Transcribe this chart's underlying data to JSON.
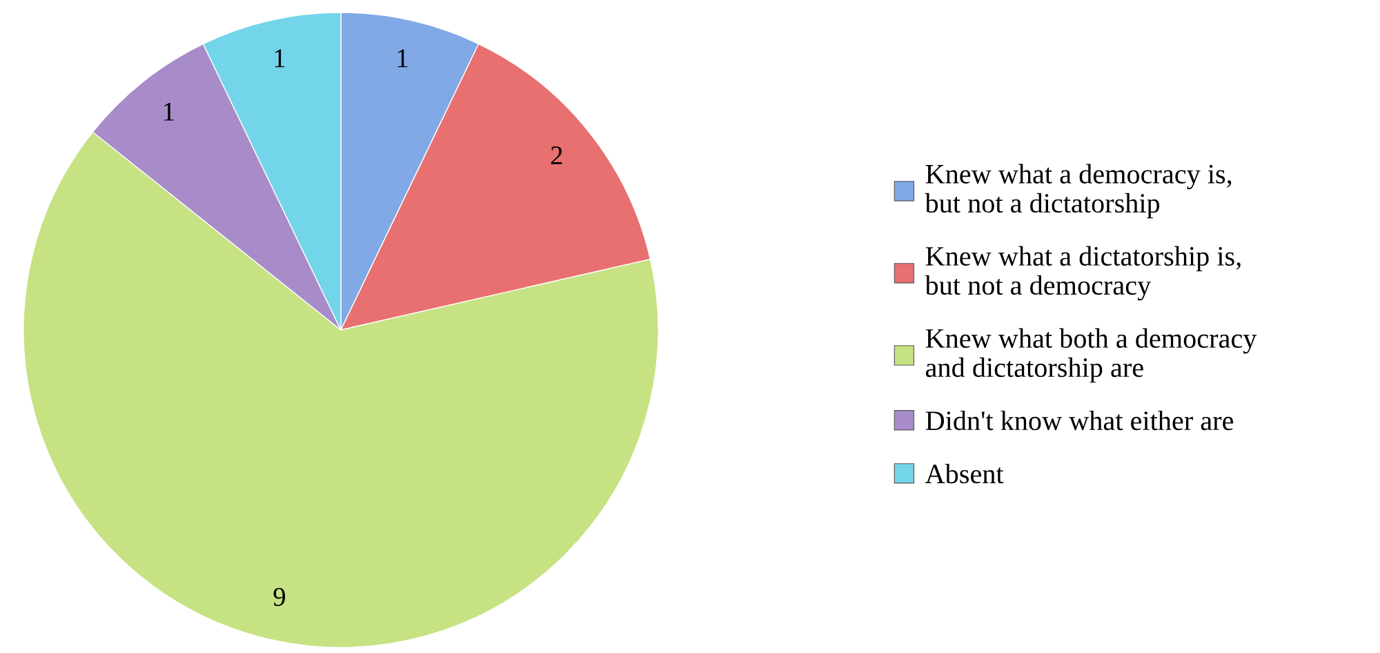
{
  "chart_data": {
    "type": "pie",
    "categories": [
      "Knew what a democracy is,\nbut not a dictatorship",
      "Knew what a dictatorship is,\nbut not a democracy",
      "Knew what both a democracy\nand dictatorship are",
      "Didn't know what either are",
      "Absent"
    ],
    "values": [
      1,
      2,
      9,
      1,
      1
    ],
    "colors": [
      "#80a9e6",
      "#e87070",
      "#c6e283",
      "#a88cc9",
      "#72d5ea"
    ],
    "data_labels": true,
    "legend": "right"
  }
}
